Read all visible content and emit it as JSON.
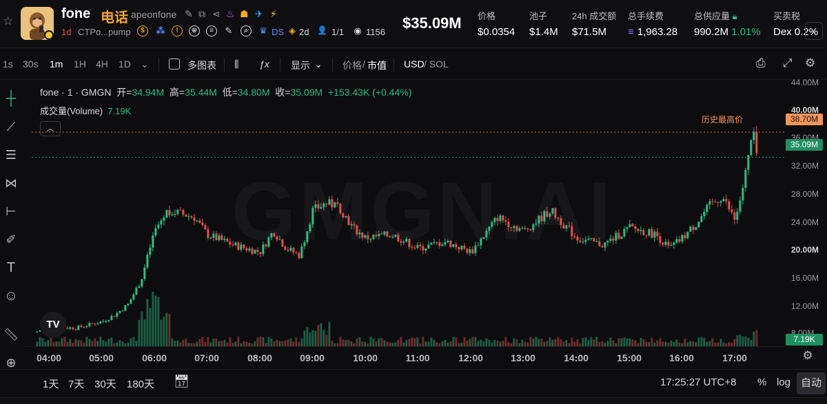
{
  "header": {
    "name": "fone",
    "name_cn": "电话",
    "handle": "apeonfone",
    "age": "1d",
    "contract": "CTPo...pump",
    "ds": "DS",
    "age2": "2d",
    "holders": "1/1",
    "views": "1156",
    "price_big": "$35.09M",
    "stats": [
      {
        "label": "价格",
        "value": "$0.0354"
      },
      {
        "label": "池子",
        "value": "$1.4M"
      },
      {
        "label": "24h 成交额",
        "value": "$71.5M"
      },
      {
        "label": "总手续费",
        "value": "1,963.28"
      },
      {
        "label": "总供应量",
        "value": "990.2M",
        "extra": "1.01%"
      },
      {
        "label": "买卖税",
        "value": "Dex 0.2%"
      }
    ]
  },
  "toolbar": {
    "intervals": [
      "1s",
      "30s",
      "1m",
      "1H",
      "4H",
      "1D"
    ],
    "active_interval": "1m",
    "multi_chart": "多图表",
    "display": "显示",
    "price_toggle": "价格",
    "slash": "/",
    "mcap_toggle": "市值",
    "currency_usd": "USD",
    "currency_sol": "/ SOL"
  },
  "legend": {
    "line1_prefix": "fone · 1 · GMGN",
    "open_label": "开=",
    "open": "34.94M",
    "high_label": "高=",
    "high": "35.44M",
    "low_label": "低=",
    "low": "34.80M",
    "close_label": "收=",
    "close": "35.09M",
    "change": "+153.43K (+0.44%)",
    "volume_label": "成交量(Volume)",
    "volume": "7.19K"
  },
  "chart": {
    "watermark": "GMGN.AI",
    "ath_label": "历史最高价",
    "ath_value": "38.70M",
    "last_value": "35.09M",
    "volume_badge": "7.19K",
    "price_ticks": [
      "44.00M",
      "40.00M",
      "36.00M",
      "32.00M",
      "28.00M",
      "24.00M",
      "20.00M",
      "16.00M",
      "12.00M",
      "8.00M"
    ],
    "time_ticks": [
      "04:00",
      "05:00",
      "06:00",
      "07:00",
      "08:00",
      "09:00",
      "10:00",
      "11:00",
      "12:00",
      "13:00",
      "14:00",
      "15:00",
      "16:00",
      "17:00"
    ]
  },
  "chart_data": {
    "type": "line",
    "ylabel": "",
    "ylim": [
      8,
      46
    ],
    "x": [
      "03:45",
      "04:00",
      "04:30",
      "05:00",
      "05:15",
      "05:30",
      "05:45",
      "06:00",
      "06:15",
      "06:30",
      "06:45",
      "07:00",
      "07:30",
      "08:00",
      "08:15",
      "08:30",
      "08:45",
      "09:00",
      "09:15",
      "09:30",
      "09:45",
      "10:00",
      "10:30",
      "11:00",
      "11:30",
      "12:00",
      "12:15",
      "12:30",
      "13:00",
      "13:15",
      "13:30",
      "14:00",
      "14:30",
      "15:00",
      "15:30",
      "15:45",
      "16:00",
      "16:15",
      "16:30",
      "16:45",
      "17:00",
      "17:10",
      "17:20",
      "17:25"
    ],
    "series": [
      {
        "values": [
          10.0,
          10.8,
          10.6,
          11.5,
          12.5,
          14.0,
          17.5,
          24.5,
          27.5,
          27.0,
          26.5,
          24.0,
          22.5,
          21.5,
          24.5,
          22.0,
          21.0,
          27.5,
          28.5,
          28.0,
          25.0,
          23.5,
          24.0,
          22.0,
          23.0,
          21.5,
          24.0,
          26.5,
          24.5,
          26.0,
          27.5,
          23.5,
          22.5,
          25.0,
          24.0,
          22.0,
          23.5,
          25.5,
          28.0,
          29.5,
          26.0,
          31.5,
          38.7,
          35.09
        ]
      }
    ],
    "volume_badge_value": 7.19
  },
  "bottom": {
    "ranges": [
      "1天",
      "7天",
      "30天",
      "180天"
    ],
    "clock": "17:25:27 UTC+8",
    "pct": "%",
    "log": "log",
    "auto": "自动"
  },
  "colors": {
    "up": "#2ebd85",
    "down": "#e2504c",
    "accent": "#f5a524",
    "ath": "#f0955a"
  }
}
